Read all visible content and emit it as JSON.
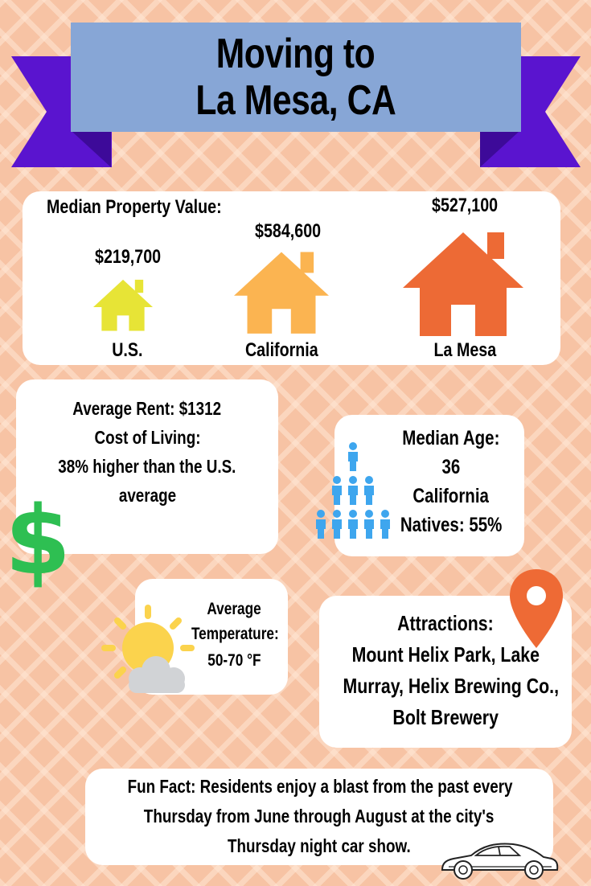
{
  "title": {
    "line1": "Moving to",
    "line2": "La Mesa, CA"
  },
  "property": {
    "heading": "Median Property Value:",
    "items": [
      {
        "label": "U.S.",
        "value": "$219,700",
        "color": "#e7e436"
      },
      {
        "label": "California",
        "value": "$584,600",
        "color": "#fbb451"
      },
      {
        "label": "La Mesa",
        "value": "$527,100",
        "color": "#ed6a35"
      }
    ]
  },
  "rent": {
    "line1": "Average Rent: $1312",
    "line2": "Cost of Living:",
    "line3": "38% higher than the U.S.",
    "line4": "average",
    "icon": "dollar-sign-icon",
    "icon_color": "#2ebf52"
  },
  "age": {
    "line1": "Median Age:",
    "line2": "36",
    "line3": "California",
    "line4": "Natives: 55%",
    "icon": "people-pyramid-icon",
    "icon_color": "#3ea6ee"
  },
  "temperature": {
    "line1": "Average",
    "line2": "Temperature:",
    "line3": "50-70 °F",
    "icon": "sun-cloud-icon"
  },
  "attractions": {
    "line1": "Attractions:",
    "line2": "Mount Helix Park, Lake",
    "line3": "Murray, Helix Brewing Co.,",
    "line4": "Bolt Brewery",
    "icon": "map-pin-icon",
    "icon_color": "#ee6a35"
  },
  "fun_fact": {
    "line1": "Fun Fact: Residents enjoy a blast from the past every",
    "line2": "Thursday from June through August at the city's",
    "line3": "Thursday night car show.",
    "icon": "car-icon"
  },
  "colors": {
    "background": "#f7c3a4",
    "banner": "#87a6d6",
    "ribbon": "#5a14cf",
    "ribbon_dark": "#3d0a99"
  }
}
